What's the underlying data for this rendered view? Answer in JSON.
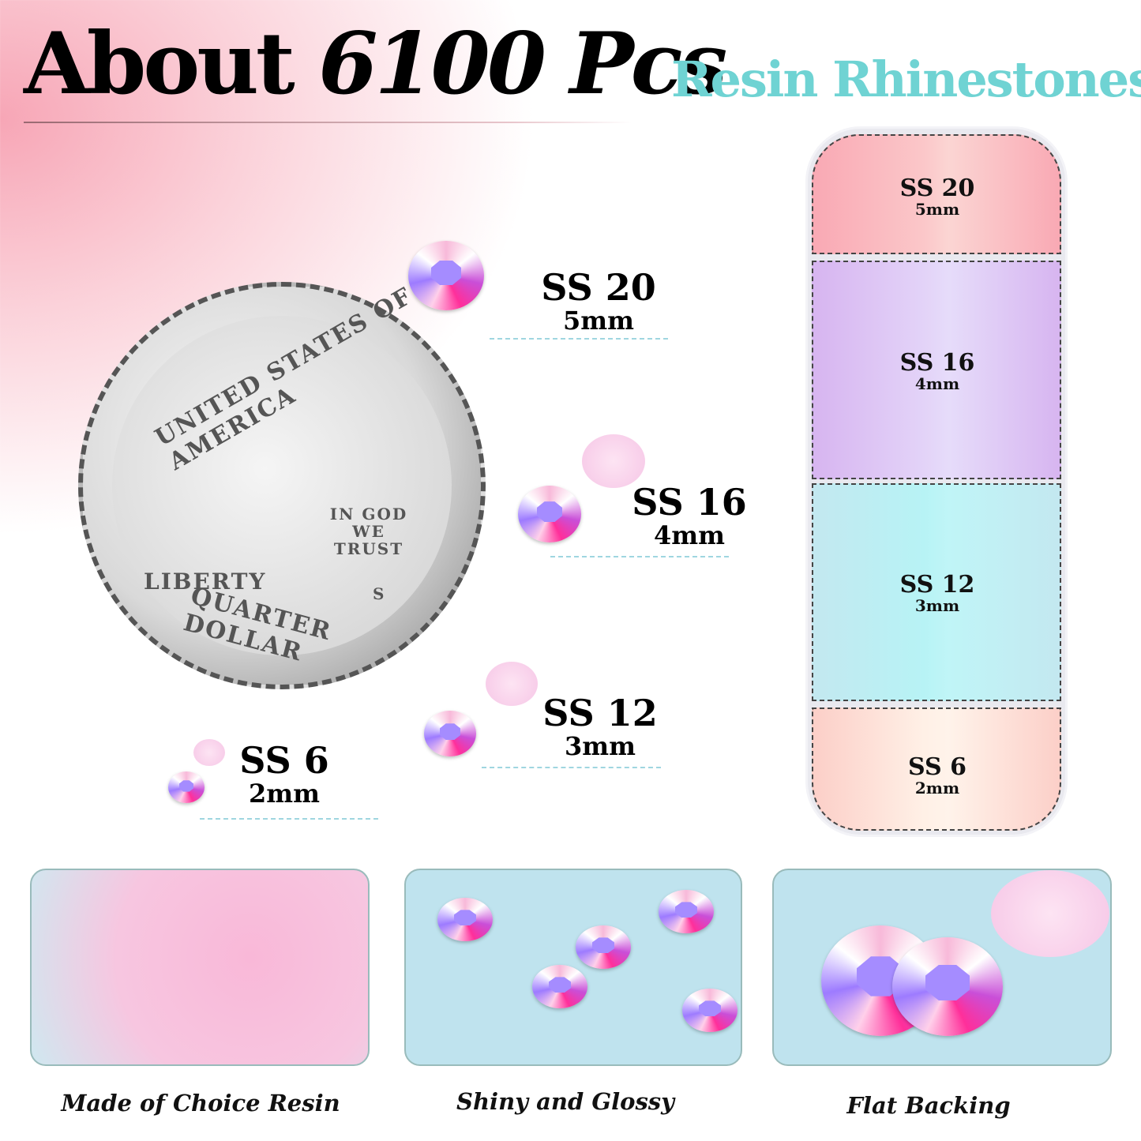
{
  "header": {
    "title_lead": "About",
    "title_count": "6100 Pcs",
    "subtitle": "Resin Rhinestones"
  },
  "colors": {
    "subtitle": "#6fd3d3",
    "background_pink": "#f7a6b6",
    "box_pink": "#f9b7bf",
    "box_purple": "#dcc2f3",
    "box_cyan": "#c6eef4",
    "box_peach": "#fcd8d2"
  },
  "coin": {
    "top_text": "UNITED STATES OF AMERICA",
    "motto": "IN GOD WE TRUST",
    "left_text": "LIBERTY",
    "bottom_text": "QUARTER DOLLAR",
    "mint": "S"
  },
  "sizes": [
    {
      "ss": "SS 20",
      "mm": "5mm"
    },
    {
      "ss": "SS 16",
      "mm": "4mm"
    },
    {
      "ss": "SS 12",
      "mm": "3mm"
    },
    {
      "ss": "SS 6",
      "mm": "2mm"
    }
  ],
  "features": [
    {
      "caption": "Made of Choice Resin"
    },
    {
      "caption": "Shiny and Glossy"
    },
    {
      "caption": "Flat Backing"
    }
  ]
}
